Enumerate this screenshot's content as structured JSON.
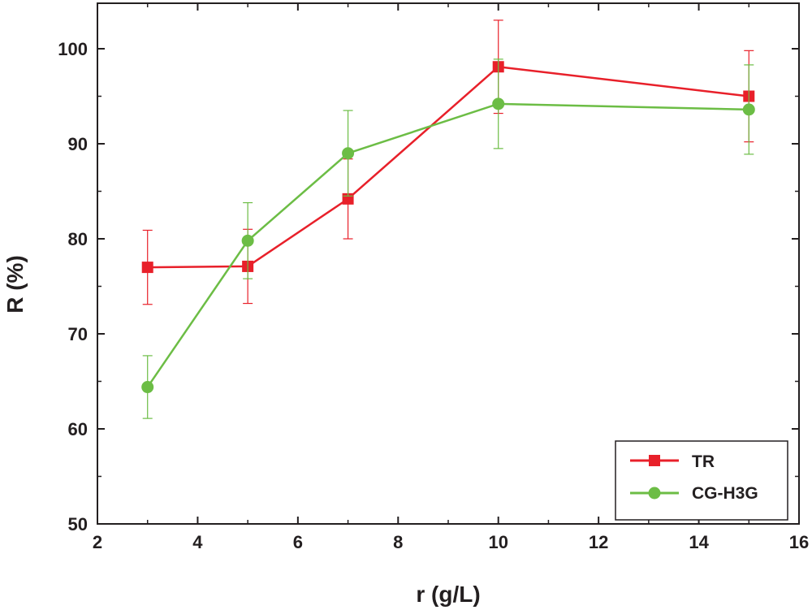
{
  "chart_data": {
    "type": "line",
    "title": "",
    "xlabel": "r (g/L)",
    "ylabel": "R (%)",
    "xlim": [
      2,
      16
    ],
    "ylim": [
      50,
      105
    ],
    "x_ticks": [
      2,
      4,
      6,
      8,
      10,
      12,
      14,
      16
    ],
    "x_tick_labels": [
      "2",
      "4",
      "6",
      "8",
      "10",
      "12",
      "14",
      "16"
    ],
    "y_ticks": [
      50,
      60,
      70,
      80,
      90,
      100
    ],
    "y_tick_labels": [
      "50",
      "60",
      "70",
      "80",
      "90",
      "100"
    ],
    "grid": false,
    "legend_position": "bottom-right",
    "series": [
      {
        "name": "TR",
        "color": "#e8202a",
        "marker": "square",
        "x": [
          3,
          5,
          7,
          10,
          15
        ],
        "values": [
          77.0,
          77.1,
          84.2,
          98.1,
          95.0
        ],
        "error": [
          3.9,
          3.9,
          4.2,
          4.9,
          4.8
        ]
      },
      {
        "name": "CG-H3G",
        "color": "#6cbd45",
        "marker": "circle",
        "x": [
          3,
          5,
          7,
          10,
          15
        ],
        "values": [
          64.4,
          79.8,
          89.0,
          94.2,
          93.6
        ],
        "error": [
          3.3,
          4.0,
          4.5,
          4.7,
          4.7
        ]
      }
    ]
  }
}
